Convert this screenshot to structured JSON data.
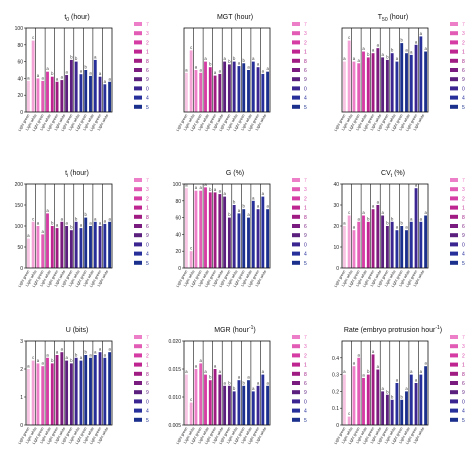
{
  "figure": {
    "group_label": "Light",
    "x_tick_labels": [
      "Light green",
      "Light white",
      "Light green",
      "Light white",
      "Light green",
      "Light white",
      "Light green",
      "Light white",
      "Light green",
      "Light white",
      "Light green",
      "Light white"
    ],
    "series_colors": [
      "#f8c6e4",
      "#f3a3d6",
      "#ec7fc7",
      "#e25bb5",
      "#d53ca4",
      "#bf2590",
      "#a01c83",
      "#7a1b7f",
      "#5b1f7e",
      "#3b2590",
      "#27309a",
      "#1b2f8c"
    ],
    "legend_labels": [
      "7",
      "3",
      "2",
      "1",
      "8",
      "6",
      "9",
      "0",
      "4",
      "5"
    ]
  },
  "chart_data": [
    {
      "type": "bar",
      "title": "t",
      "title_sub": "0",
      "title_suffix": " (hour)",
      "ylim": [
        0,
        100
      ],
      "yticks": [
        "0",
        "20",
        "40",
        "60",
        "80",
        "100"
      ],
      "values": [
        37,
        85,
        40,
        37,
        48,
        42,
        36,
        38,
        44,
        62,
        60,
        45,
        50,
        43,
        62,
        42,
        33,
        36
      ],
      "letters": [
        "a",
        "c",
        "a",
        "a",
        "a",
        "b",
        "a",
        "a",
        "a",
        "b",
        "b",
        "a",
        "b",
        "a",
        "a",
        "a",
        "a",
        "a"
      ]
    },
    {
      "type": "bar",
      "title": "MGT",
      "title_sub": "",
      "title_suffix": " (hour)",
      "ylim": [
        0,
        150
      ],
      "yticks": [],
      "values": [
        70,
        110,
        75,
        70,
        90,
        80,
        65,
        68,
        90,
        85,
        90,
        82,
        87,
        75,
        90,
        80,
        68,
        72
      ],
      "letters": [
        "a",
        "c",
        "a",
        "a",
        "a",
        "b",
        "a",
        "a",
        "a",
        "b",
        "b",
        "a",
        "b",
        "a",
        "a",
        "a",
        "a",
        "a"
      ]
    },
    {
      "type": "bar",
      "title": "T",
      "title_sub": "50",
      "title_suffix": " (hour)",
      "ylim": [
        0,
        100
      ],
      "yticks": [],
      "values": [
        60,
        85,
        60,
        58,
        72,
        65,
        70,
        76,
        65,
        62,
        70,
        60,
        82,
        70,
        68,
        80,
        90,
        72
      ],
      "letters": [
        "a",
        "c",
        "a",
        "a",
        "a",
        "b",
        "a",
        "a",
        "a",
        "b",
        "b",
        "a",
        "b",
        "a",
        "a",
        "a",
        "a",
        "a"
      ]
    },
    {
      "type": "bar",
      "title": "t",
      "title_sub": "i",
      "title_suffix": " (hour)",
      "ylim": [
        0,
        200
      ],
      "yticks": [
        "0",
        "50",
        "100",
        "150",
        "200"
      ],
      "values": [
        70,
        110,
        100,
        80,
        130,
        100,
        95,
        110,
        100,
        90,
        110,
        95,
        120,
        100,
        110,
        100,
        105,
        110
      ],
      "letters": [
        "a",
        "c",
        "a",
        "a",
        "a",
        "b",
        "a",
        "a",
        "a",
        "b",
        "b",
        "a",
        "b",
        "a",
        "a",
        "a",
        "a",
        "a"
      ]
    },
    {
      "type": "bar",
      "title": "G",
      "title_sub": "",
      "title_suffix": " (%)",
      "ylim": [
        0,
        100
      ],
      "yticks": [
        "0",
        "20",
        "40",
        "60",
        "80",
        "100"
      ],
      "values": [
        95,
        20,
        92,
        92,
        96,
        90,
        90,
        88,
        85,
        60,
        75,
        65,
        70,
        60,
        80,
        70,
        85,
        70
      ],
      "letters": [
        "a",
        "c",
        "a",
        "a",
        "a",
        "b",
        "a",
        "a",
        "a",
        "b",
        "b",
        "a",
        "b",
        "a",
        "a",
        "a",
        "a",
        "a"
      ]
    },
    {
      "type": "bar",
      "title": "CV",
      "title_sub": "t",
      "title_suffix": " (%)",
      "ylim": [
        0,
        40
      ],
      "yticks": [
        "0",
        "10",
        "20",
        "30",
        "40"
      ],
      "values": [
        20,
        25,
        18,
        22,
        25,
        22,
        28,
        30,
        25,
        20,
        22,
        18,
        20,
        18,
        22,
        38,
        22,
        25
      ],
      "letters": [
        "a",
        "c",
        "a",
        "a",
        "a",
        "b",
        "a",
        "a",
        "a",
        "b",
        "b",
        "a",
        "b",
        "a",
        "a",
        "a",
        "a",
        "a"
      ]
    },
    {
      "type": "bar",
      "title": "U",
      "title_sub": "",
      "title_suffix": " (bits)",
      "ylim": [
        0,
        3
      ],
      "yticks": [
        "0",
        "1",
        "2",
        "3"
      ],
      "values": [
        2.0,
        2.3,
        2.2,
        2.1,
        2.4,
        2.2,
        2.5,
        2.6,
        2.3,
        2.2,
        2.4,
        2.3,
        2.5,
        2.4,
        2.5,
        2.6,
        2.4,
        2.6
      ],
      "letters": [
        "a",
        "c",
        "a",
        "a",
        "a",
        "b",
        "a",
        "a",
        "a",
        "b",
        "b",
        "a",
        "b",
        "a",
        "a",
        "a",
        "a",
        "a"
      ]
    },
    {
      "type": "bar",
      "title": "MGR",
      "title_sub": "",
      "title_suffix": " (hour",
      "title_sup": "-1",
      "ylim": [
        0.005,
        0.02
      ],
      "yticks": [
        "0.005",
        "0.010",
        "0.015",
        "0.020"
      ],
      "values": [
        0.014,
        0.009,
        0.015,
        0.016,
        0.014,
        0.013,
        0.015,
        0.014,
        0.012,
        0.012,
        0.011,
        0.013,
        0.012,
        0.013,
        0.011,
        0.012,
        0.014,
        0.012
      ],
      "letters": [
        "a",
        "c",
        "a",
        "a",
        "a",
        "b",
        "a",
        "a",
        "a",
        "b",
        "b",
        "a",
        "b",
        "a",
        "a",
        "a",
        "a",
        "a"
      ]
    },
    {
      "type": "bar",
      "title": "Rate (embryo protrusion hour",
      "title_sub": "",
      "title_suffix": "",
      "title_sup": "-1",
      "ylim": [
        0,
        0.5
      ],
      "yticks": [
        "0",
        "0.1",
        "0.2",
        "0.3",
        "0.4"
      ],
      "values": [
        0.3,
        0.05,
        0.35,
        0.4,
        0.28,
        0.3,
        0.42,
        0.33,
        0.2,
        0.18,
        0.15,
        0.25,
        0.15,
        0.2,
        0.3,
        0.25,
        0.3,
        0.35
      ],
      "letters": [
        "a",
        "c",
        "a",
        "a",
        "a",
        "b",
        "a",
        "a",
        "a",
        "b",
        "b",
        "a",
        "b",
        "a",
        "a",
        "a",
        "a",
        "a"
      ]
    }
  ]
}
